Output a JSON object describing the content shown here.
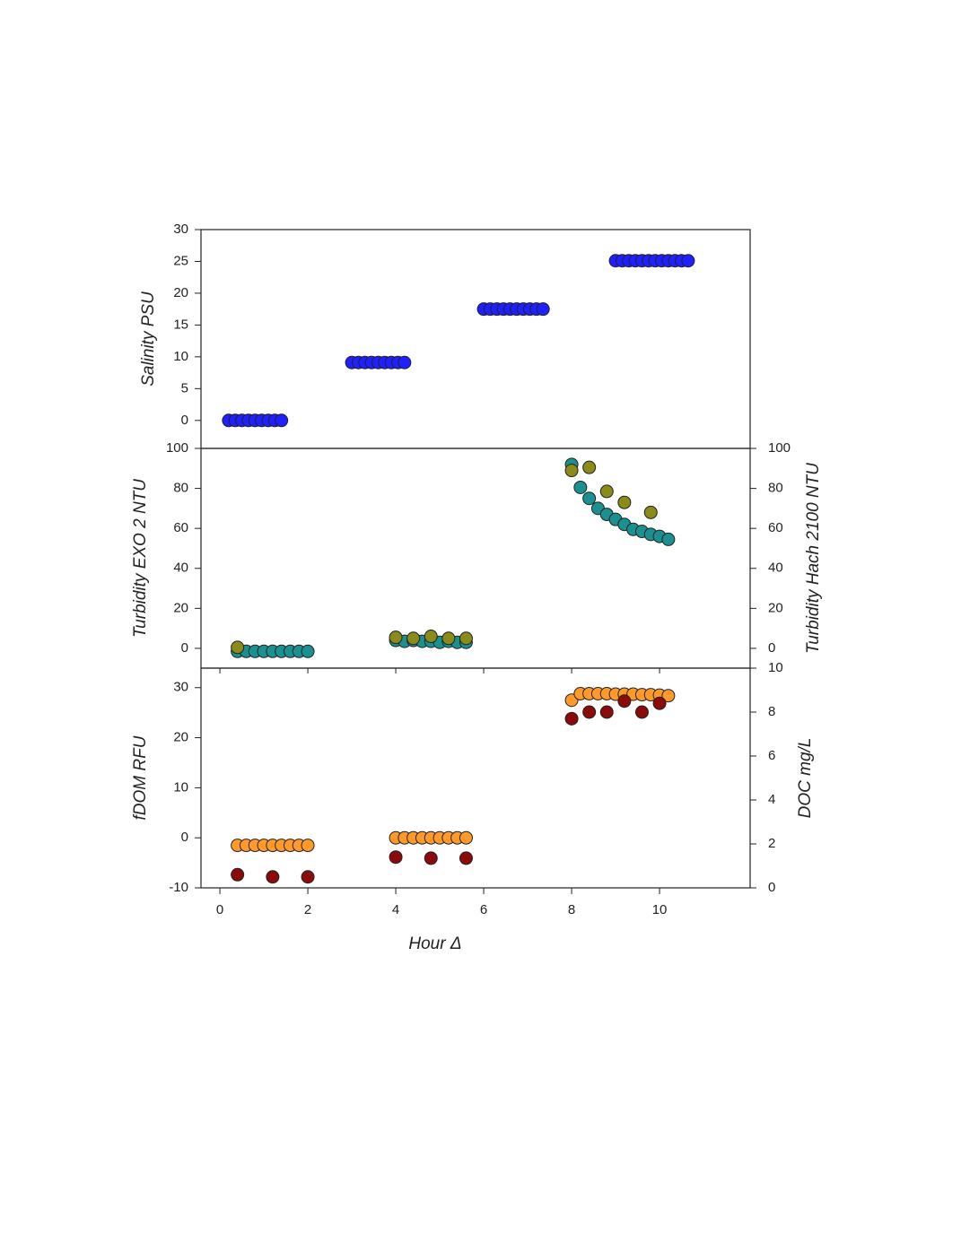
{
  "chart_data": [
    {
      "type": "scatter",
      "ylabel": "Salinity PSU",
      "ylabel_color": "#222222",
      "xlim": [
        -0.43,
        12.06
      ],
      "ylim": [
        -4.4,
        30
      ],
      "yticks": [
        0,
        5,
        10,
        15,
        20,
        25,
        30
      ],
      "series": [
        {
          "color": "#1f1fff",
          "axis": "y",
          "x": [
            0.2,
            0.35,
            0.5,
            0.65,
            0.8,
            0.95,
            1.1,
            1.25,
            1.4,
            3.0,
            3.15,
            3.3,
            3.45,
            3.6,
            3.75,
            3.9,
            4.05,
            4.2,
            6.0,
            6.15,
            6.3,
            6.45,
            6.6,
            6.75,
            6.9,
            7.05,
            7.2,
            7.35,
            9.0,
            9.15,
            9.3,
            9.45,
            9.6,
            9.75,
            9.9,
            10.05,
            10.2,
            10.35,
            10.5,
            10.65
          ],
          "values": [
            0,
            0,
            0,
            0,
            0,
            0,
            0,
            0,
            0,
            9.1,
            9.1,
            9.1,
            9.1,
            9.1,
            9.1,
            9.1,
            9.1,
            9.1,
            17.5,
            17.5,
            17.5,
            17.5,
            17.5,
            17.5,
            17.5,
            17.5,
            17.5,
            17.5,
            25.1,
            25.1,
            25.1,
            25.1,
            25.1,
            25.1,
            25.1,
            25.1,
            25.1,
            25.1,
            25.1,
            25.1
          ]
        }
      ]
    },
    {
      "type": "scatter",
      "ylabel": "Turbidity EXO 2 NTU",
      "ylabel_color": "#1a9a9a",
      "y2label": "Turbidity Hach 2100 NTU",
      "y2label_color": "#8b8b1a",
      "xlim": [
        -0.43,
        12.06
      ],
      "ylim": [
        -9.9,
        100
      ],
      "yticks": [
        0,
        20,
        40,
        60,
        80,
        100
      ],
      "y2lim": [
        -9.9,
        100
      ],
      "y2ticks": [
        0,
        20,
        40,
        60,
        80,
        100
      ],
      "series": [
        {
          "color": "#1a9090",
          "axis": "y",
          "x": [
            0.4,
            0.6,
            0.8,
            1.0,
            1.2,
            1.4,
            1.6,
            1.8,
            2.0,
            4.0,
            4.2,
            4.4,
            4.6,
            4.8,
            5.0,
            5.2,
            5.4,
            5.6,
            8.0,
            8.2,
            8.4,
            8.6,
            8.8,
            9.0,
            9.2,
            9.4,
            9.6,
            9.8,
            10.0,
            10.2
          ],
          "values": [
            -1.5,
            -1.5,
            -1.5,
            -1.5,
            -1.5,
            -1.5,
            -1.5,
            -1.5,
            -1.5,
            4,
            3.5,
            4,
            3.5,
            3.5,
            3,
            3.5,
            3,
            3,
            92,
            80.5,
            75,
            70,
            67,
            64.5,
            62,
            59.5,
            58.5,
            57,
            56,
            54.5
          ]
        },
        {
          "color": "#8b8b1a",
          "axis": "y2",
          "x": [
            0.4,
            4.0,
            4.4,
            4.8,
            5.2,
            5.6,
            8.0,
            8.4,
            8.8,
            9.2,
            9.8
          ],
          "values": [
            0.5,
            5.5,
            5,
            6,
            5,
            5,
            89,
            90.5,
            78.5,
            73,
            68
          ]
        }
      ]
    },
    {
      "type": "scatter",
      "ylabel": "fDOM RFU",
      "ylabel_color": "#ff9a2a",
      "y2label": "DOC mg/L",
      "y2label_color": "#8b1a1a",
      "xlabel": "Hour Δ",
      "xlim": [
        -0.43,
        12.06
      ],
      "xticks": [
        0,
        2,
        4,
        6,
        8,
        10
      ],
      "ylim": [
        -10,
        33.9
      ],
      "yticks": [
        -10,
        0,
        10,
        20,
        30
      ],
      "y2lim": [
        0,
        10
      ],
      "y2ticks": [
        0,
        2,
        4,
        6,
        8,
        10
      ],
      "series": [
        {
          "color": "#ff9a2a",
          "axis": "y",
          "x": [
            0.4,
            0.6,
            0.8,
            1.0,
            1.2,
            1.4,
            1.6,
            1.8,
            2.0,
            4.0,
            4.2,
            4.4,
            4.6,
            4.8,
            5.0,
            5.2,
            5.4,
            5.6,
            8.0,
            8.2,
            8.4,
            8.6,
            8.8,
            9.0,
            9.2,
            9.4,
            9.6,
            9.8,
            10.0,
            10.2
          ],
          "values": [
            -1.5,
            -1.5,
            -1.5,
            -1.5,
            -1.5,
            -1.5,
            -1.5,
            -1.5,
            -1.5,
            0,
            0,
            0,
            0,
            0,
            0,
            0,
            0,
            0,
            27.5,
            28.8,
            28.8,
            28.8,
            28.8,
            28.7,
            28.7,
            28.7,
            28.6,
            28.6,
            28.5,
            28.4
          ]
        },
        {
          "color": "#8b0a0a",
          "axis": "y2",
          "x": [
            0.4,
            1.2,
            2.0,
            4.0,
            4.8,
            5.6,
            8.0,
            8.4,
            8.8,
            9.2,
            9.6,
            10.0
          ],
          "values": [
            0.6,
            0.5,
            0.5,
            1.4,
            1.35,
            1.35,
            7.7,
            8.0,
            8.0,
            8.5,
            8.0,
            8.4
          ]
        }
      ]
    }
  ]
}
